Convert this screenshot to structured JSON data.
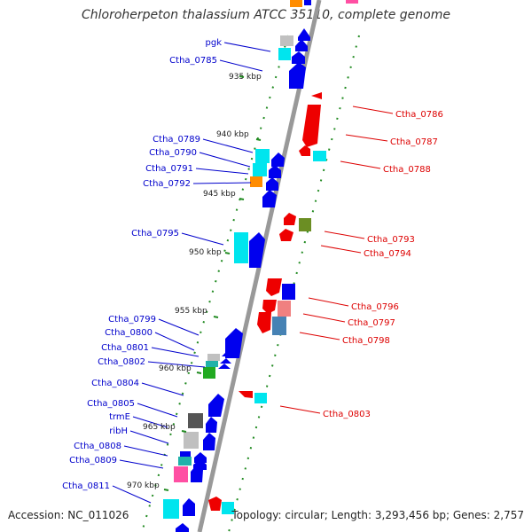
{
  "title": "Chloroherpeton thalassium ATCC 35110, complete genome",
  "footer": {
    "accession": "Accession: NC_011026",
    "topology": "Topology: circular; Length: 3,293,456 bp; Genes: 2,757"
  },
  "colors": {
    "backbone": "#999999",
    "forward_label": "#0000cc",
    "reverse_label": "#dd0000",
    "tick": "#228b22",
    "gene_blue": "#0000ee",
    "gene_red": "#ee0000",
    "gene_cyan": "#00e5ee",
    "gene_teal": "#20b2aa",
    "gene_gray": "#c0c0c0",
    "gene_darkgray": "#555555",
    "gene_orange": "#ff8c00",
    "gene_olive": "#6b8e23",
    "gene_pink": "#ff4fa3",
    "gene_salmon": "#f08080",
    "gene_steelblue": "#4682b4",
    "gene_green": "#22aa22"
  },
  "kbp_marks": [
    "935 kbp",
    "940 kbp",
    "945 kbp",
    "950 kbp",
    "955 kbp",
    "960 kbp",
    "965 kbp",
    "970 kbp"
  ],
  "forward_gene_labels": [
    "pgk",
    "Ctha_0785",
    "Ctha_0789",
    "Ctha_0790",
    "Ctha_0791",
    "Ctha_0792",
    "Ctha_0795",
    "Ctha_0799",
    "Ctha_0800",
    "Ctha_0801",
    "Ctha_0802",
    "Ctha_0804",
    "Ctha_0805",
    "trmE",
    "ribH",
    "Ctha_0808",
    "Ctha_0809",
    "Ctha_0811"
  ],
  "reverse_gene_labels": [
    "Ctha_0786",
    "Ctha_0787",
    "Ctha_0788",
    "Ctha_0793",
    "Ctha_0794",
    "Ctha_0796",
    "Ctha_0797",
    "Ctha_0798",
    "Ctha_0803"
  ]
}
